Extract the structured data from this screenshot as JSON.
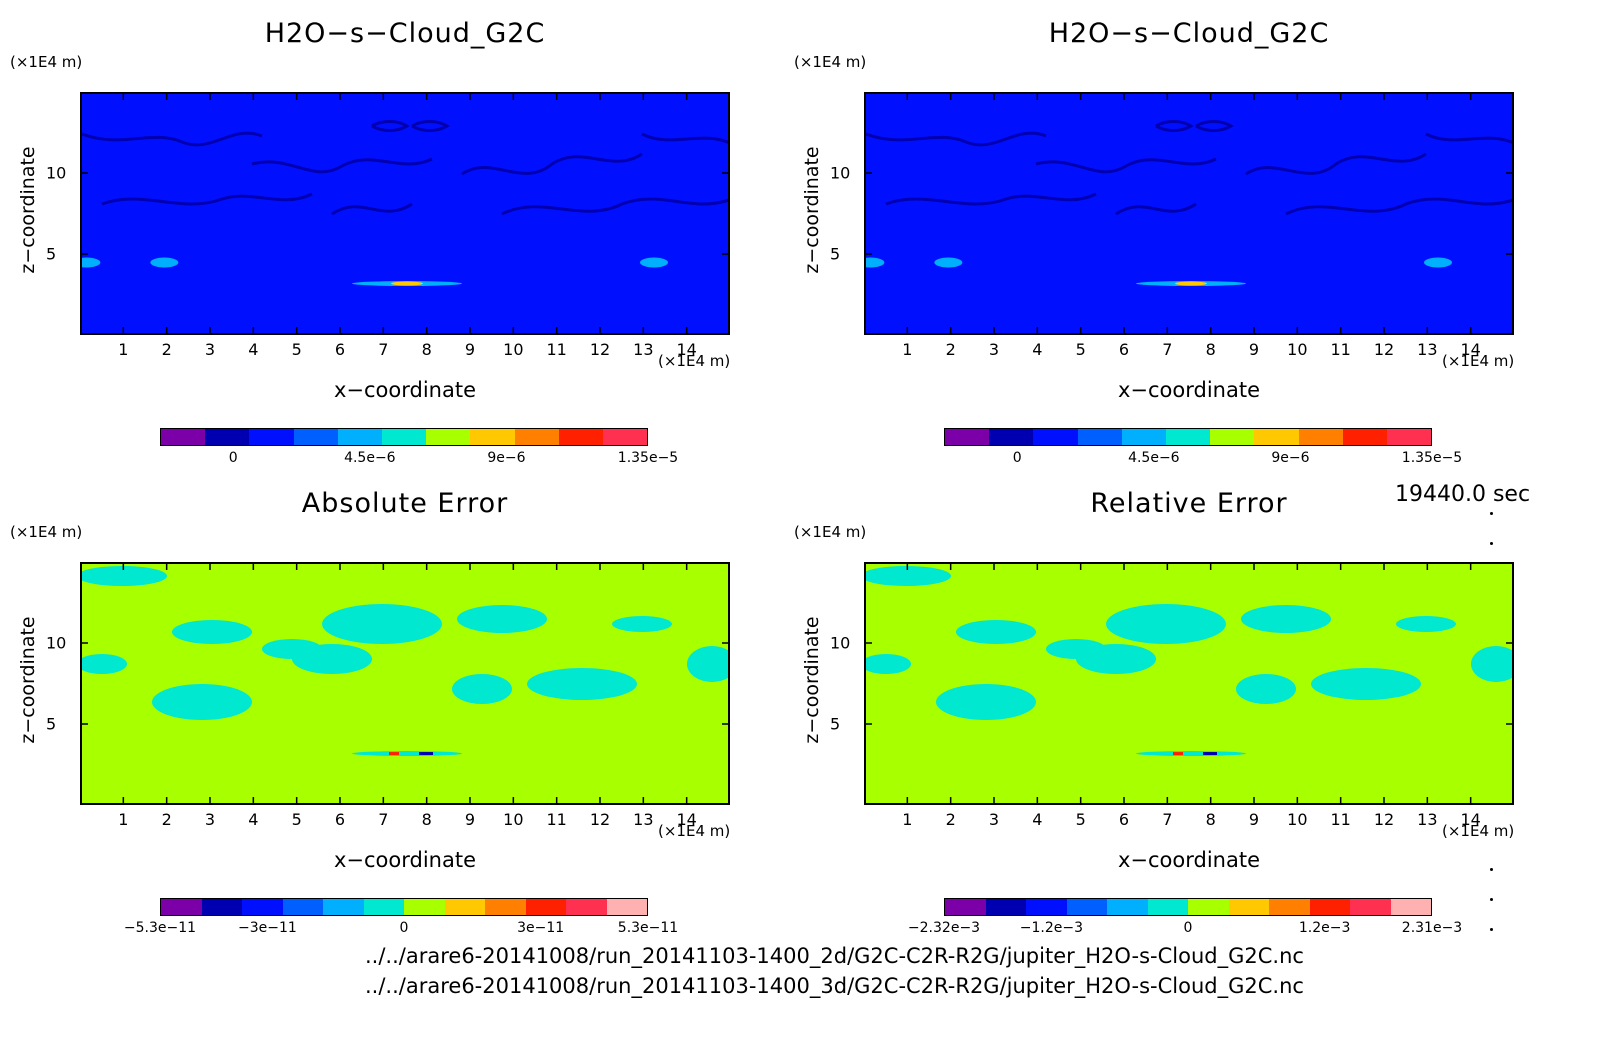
{
  "units": {
    "y": "(×1E4 m)",
    "x": "(×1E4 m)"
  },
  "axis_labels": {
    "x": "x−coordinate",
    "z": "z−coordinate"
  },
  "timestamp": "19440.0 sec",
  "footer": {
    "line1": "../../arare6-20141008/run_20141103-1400_2d/G2C-C2R-R2G/jupiter_H2O-s-Cloud_G2C.nc",
    "line2": "../../arare6-20141008/run_20141103-1400_3d/G2C-C2R-R2G/jupiter_H2O-s-Cloud_G2C.nc"
  },
  "colors": {
    "palette11": [
      "#7b00a8",
      "#0000b0",
      "#0010ff",
      "#0060ff",
      "#00b0ff",
      "#00e8d0",
      "#a8ff00",
      "#ffc800",
      "#ff8000",
      "#ff2000",
      "#ff3050"
    ],
    "palette12": [
      "#7b00a8",
      "#0000b0",
      "#0010ff",
      "#0060ff",
      "#00b0ff",
      "#00e8d0",
      "#a8ff00",
      "#ffc800",
      "#ff8000",
      "#ff2000",
      "#ff3050",
      "#ffb0b0"
    ]
  },
  "chart_data": [
    {
      "type": "heatmap",
      "title": "H2O−s−Cloud_G2C",
      "xlabel": "x−coordinate",
      "ylabel": "z−coordinate",
      "xlim": [
        0,
        15
      ],
      "ylim": [
        0,
        15
      ],
      "xticks": [
        "1",
        "2",
        "3",
        "4",
        "5",
        "6",
        "7",
        "8",
        "9",
        "10",
        "11",
        "12",
        "13",
        "14"
      ],
      "yticks": [
        "5",
        "10"
      ],
      "colorbar_labels": [
        "0",
        "4.5e−6",
        "9e−6",
        "1.35e−5"
      ],
      "background_level": "0",
      "features": [
        {
          "x": 1.9,
          "z": 4.6,
          "level": "4.5e−6"
        },
        {
          "x": 0.1,
          "z": 4.6,
          "level": "4.5e−6"
        },
        {
          "x": 13.2,
          "z": 4.6,
          "level": "4.5e−6"
        },
        {
          "x": 7.5,
          "z": 3.3,
          "level": "9e−6"
        }
      ]
    },
    {
      "type": "heatmap",
      "title": "H2O−s−Cloud_G2C",
      "xlabel": "x−coordinate",
      "ylabel": "z−coordinate",
      "xlim": [
        0,
        15
      ],
      "ylim": [
        0,
        15
      ],
      "xticks": [
        "1",
        "2",
        "3",
        "4",
        "5",
        "6",
        "7",
        "8",
        "9",
        "10",
        "11",
        "12",
        "13",
        "14"
      ],
      "yticks": [
        "5",
        "10"
      ],
      "colorbar_labels": [
        "0",
        "4.5e−6",
        "9e−6",
        "1.35e−5"
      ],
      "background_level": "0",
      "features": [
        {
          "x": 1.9,
          "z": 4.6,
          "level": "4.5e−6"
        },
        {
          "x": 0.1,
          "z": 4.6,
          "level": "4.5e−6"
        },
        {
          "x": 13.2,
          "z": 4.6,
          "level": "4.5e−6"
        },
        {
          "x": 7.5,
          "z": 3.3,
          "level": "9e−6"
        }
      ]
    },
    {
      "type": "heatmap",
      "title": "Absolute Error",
      "xlabel": "x−coordinate",
      "ylabel": "z−coordinate",
      "xlim": [
        0,
        15
      ],
      "ylim": [
        0,
        15
      ],
      "xticks": [
        "1",
        "2",
        "3",
        "4",
        "5",
        "6",
        "7",
        "8",
        "9",
        "10",
        "11",
        "12",
        "13",
        "14"
      ],
      "yticks": [
        "5",
        "10"
      ],
      "colorbar_labels": [
        "−5.3e−11",
        "−3e−11",
        "0",
        "3e−11",
        "5.3e−11"
      ],
      "background_level": "0",
      "features": [
        {
          "x": 7.5,
          "z": 3.3,
          "level": "±5.3e−11"
        }
      ]
    },
    {
      "type": "heatmap",
      "title": "Relative Error",
      "xlabel": "x−coordinate",
      "ylabel": "z−coordinate",
      "xlim": [
        0,
        15
      ],
      "ylim": [
        0,
        15
      ],
      "xticks": [
        "1",
        "2",
        "3",
        "4",
        "5",
        "6",
        "7",
        "8",
        "9",
        "10",
        "11",
        "12",
        "13",
        "14"
      ],
      "yticks": [
        "5",
        "10"
      ],
      "colorbar_labels": [
        "−2.32e−3",
        "−1.2e−3",
        "0",
        "1.2e−3",
        "2.31e−3"
      ],
      "background_level": "0",
      "features": [
        {
          "x": 7.5,
          "z": 3.3,
          "level": "±2.31e−3"
        }
      ]
    }
  ]
}
